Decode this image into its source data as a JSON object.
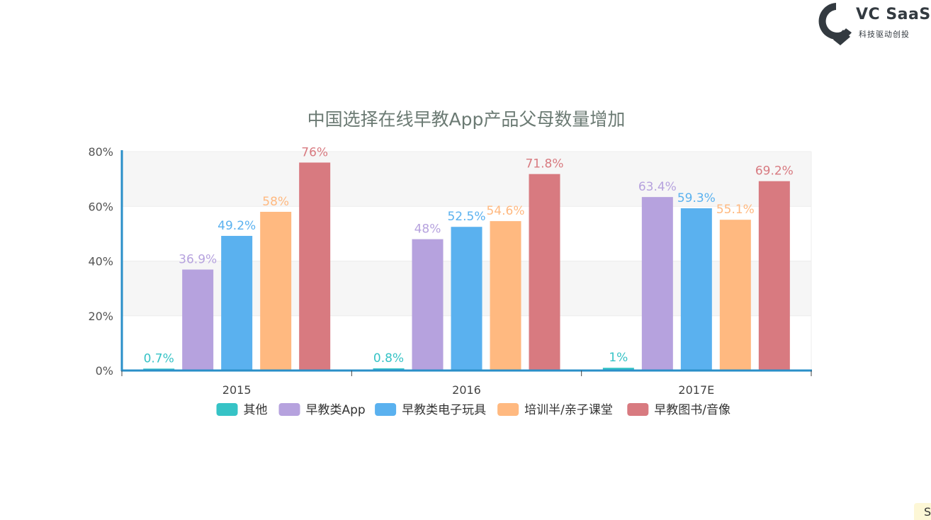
{
  "logo": {
    "brand": "VC SaaS",
    "tagline": "科技驱动创投",
    "color": "#333a40"
  },
  "corner_tag": "S",
  "chart_data": {
    "type": "bar",
    "title": "中国选择在线早教App产品父母数量增加",
    "categories": [
      "2015",
      "2016",
      "2017E"
    ],
    "y_ticks": [
      "0%",
      "20%",
      "40%",
      "60%",
      "80%"
    ],
    "ylim": [
      0,
      80
    ],
    "grid": true,
    "legend_position": "bottom",
    "series": [
      {
        "name": "其他",
        "color": "#36c3c6",
        "values": [
          0.7,
          0.8,
          1
        ],
        "labels": [
          "0.7%",
          "0.8%",
          "1%"
        ]
      },
      {
        "name": "早教类App",
        "color": "#b6a2de",
        "values": [
          36.9,
          48,
          63.4
        ],
        "labels": [
          "36.9%",
          "48%",
          "63.4%"
        ]
      },
      {
        "name": "早教类电子玩具",
        "color": "#5ab1ef",
        "values": [
          49.2,
          52.5,
          59.3
        ],
        "labels": [
          "49.2%",
          "52.5%",
          "59.3%"
        ]
      },
      {
        "name": "培训半/亲子课堂",
        "color": "#ffb980",
        "values": [
          58,
          54.6,
          55.1
        ],
        "labels": [
          "58%",
          "54.6%",
          "55.1%"
        ]
      },
      {
        "name": "早教图书/音像",
        "color": "#d87a80",
        "values": [
          76,
          71.8,
          69.2
        ],
        "labels": [
          "76%",
          "71.8%",
          "69.2%"
        ]
      }
    ]
  }
}
